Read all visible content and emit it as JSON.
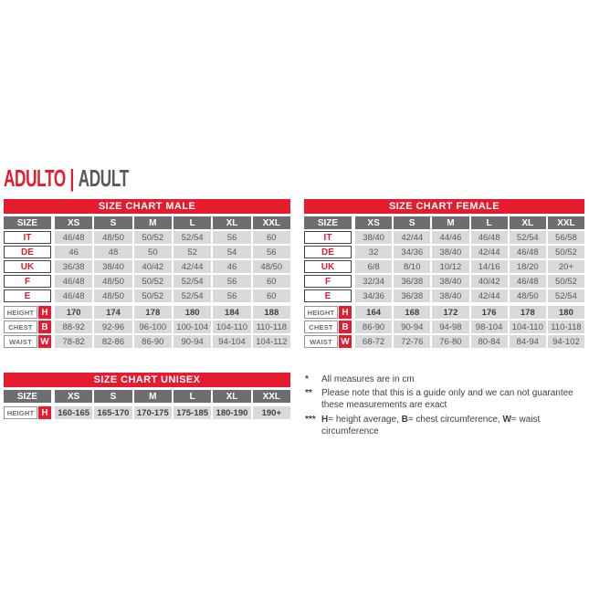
{
  "page_title": {
    "primary": "ADULTO",
    "separator": "|",
    "secondary": "ADULT"
  },
  "colors": {
    "accent_red": "#e61b2e",
    "header_gray": "#6d6e71",
    "cell_gray": "#d8d9da",
    "text_gray": "#58595b"
  },
  "tables": [
    {
      "id": "male",
      "title": "SIZE CHART MALE",
      "size_label": "SIZE",
      "columns": [
        "XS",
        "S",
        "M",
        "L",
        "XL",
        "XXL"
      ],
      "size_rows": [
        {
          "label": "IT",
          "values": [
            "46/48",
            "48/50",
            "50/52",
            "52/54",
            "56",
            "60"
          ]
        },
        {
          "label": "DE",
          "values": [
            "46",
            "48",
            "50",
            "52",
            "54",
            "56"
          ]
        },
        {
          "label": "UK",
          "values": [
            "36/38",
            "38/40",
            "40/42",
            "42/44",
            "46",
            "48/50"
          ]
        },
        {
          "label": "F",
          "values": [
            "46/48",
            "48/50",
            "50/52",
            "52/54",
            "56",
            "60"
          ]
        },
        {
          "label": "E",
          "values": [
            "46/48",
            "48/50",
            "50/52",
            "52/54",
            "56",
            "60"
          ]
        }
      ],
      "measure_rows": [
        {
          "label": "HEIGHT",
          "letter": "H",
          "bold": true,
          "values": [
            "170",
            "174",
            "178",
            "180",
            "184",
            "188"
          ]
        },
        {
          "label": "CHEST",
          "letter": "B",
          "bold": false,
          "values": [
            "88-92",
            "92-96",
            "96-100",
            "100-104",
            "104-110",
            "110-118"
          ]
        },
        {
          "label": "WAIST",
          "letter": "W",
          "bold": false,
          "values": [
            "78-82",
            "82-86",
            "86-90",
            "90-94",
            "94-104",
            "104-112"
          ]
        }
      ]
    },
    {
      "id": "female",
      "title": "SIZE CHART FEMALE",
      "size_label": "SIZE",
      "columns": [
        "XS",
        "S",
        "M",
        "L",
        "XL",
        "XXL"
      ],
      "size_rows": [
        {
          "label": "IT",
          "values": [
            "38/40",
            "42/44",
            "44/46",
            "46/48",
            "52/54",
            "56/58"
          ]
        },
        {
          "label": "DE",
          "values": [
            "32",
            "34/36",
            "38/40",
            "42/44",
            "46/48",
            "50/52"
          ]
        },
        {
          "label": "UK",
          "values": [
            "6/8",
            "8/10",
            "10/12",
            "14/16",
            "18/20",
            "20+"
          ]
        },
        {
          "label": "F",
          "values": [
            "32/34",
            "36/38",
            "38/40",
            "40/42",
            "46/48",
            "50/52"
          ]
        },
        {
          "label": "E",
          "values": [
            "34/36",
            "36/38",
            "38/40",
            "42/44",
            "48/50",
            "52/54"
          ]
        }
      ],
      "measure_rows": [
        {
          "label": "HEIGHT",
          "letter": "H",
          "bold": true,
          "values": [
            "164",
            "168",
            "172",
            "176",
            "178",
            "180"
          ]
        },
        {
          "label": "CHEST",
          "letter": "B",
          "bold": false,
          "values": [
            "86-90",
            "90-94",
            "94-98",
            "98-104",
            "104-110",
            "110-118"
          ]
        },
        {
          "label": "WAIST",
          "letter": "W",
          "bold": false,
          "values": [
            "68-72",
            "72-76",
            "76-80",
            "80-84",
            "84-94",
            "94-102"
          ]
        }
      ]
    },
    {
      "id": "unisex",
      "title": "SIZE CHART UNISEX",
      "size_label": "SIZE",
      "columns": [
        "XS",
        "S",
        "M",
        "L",
        "XL",
        "XXL"
      ],
      "size_rows": [],
      "measure_rows": [
        {
          "label": "HEIGHT",
          "letter": "H",
          "bold": true,
          "values": [
            "160-165",
            "165-170",
            "170-175",
            "175-185",
            "180-190",
            "190+"
          ]
        }
      ]
    }
  ],
  "footnotes": [
    {
      "marker": "*",
      "segments": [
        {
          "text": "All measures are in cm"
        }
      ]
    },
    {
      "marker": "**",
      "segments": [
        {
          "text": "Please note that this is a guide only and we can not guarantee these measurements are exact"
        }
      ]
    },
    {
      "marker": "***",
      "segments": [
        {
          "text": "H",
          "bold": true
        },
        {
          "text": "= height average, "
        },
        {
          "text": "B",
          "bold": true
        },
        {
          "text": "= chest circumference, "
        },
        {
          "text": "W",
          "bold": true
        },
        {
          "text": "= waist circumference"
        }
      ]
    }
  ]
}
